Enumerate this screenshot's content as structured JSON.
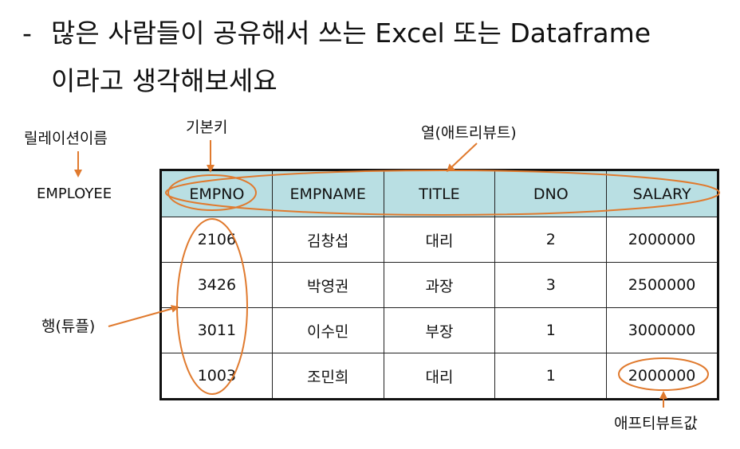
{
  "heading": {
    "bullet": "-",
    "line1": "많은 사람들이 공유해서 쓰는 Excel 또는 Dataframe",
    "line2": "이라고 생각해보세요"
  },
  "labels": {
    "relation_name": "릴레이션이름",
    "relation_value": "EMPLOYEE",
    "primary_key": "기본키",
    "attribute": "열(애트리뷰트)",
    "tuple": "행(튜플)",
    "attribute_value": "애프티뷰트값"
  },
  "table": {
    "headers": [
      "EMPNO",
      "EMPNAME",
      "TITLE",
      "DNO",
      "SALARY"
    ],
    "rows": [
      [
        "2106",
        "김창섭",
        "대리",
        "2",
        "2000000"
      ],
      [
        "3426",
        "박영권",
        "과장",
        "3",
        "2500000"
      ],
      [
        "3011",
        "이수민",
        "부장",
        "1",
        "3000000"
      ],
      [
        "1003",
        "조민희",
        "대리",
        "1",
        "2000000"
      ]
    ]
  },
  "colors": {
    "header_bg": "#b9dfe3",
    "annotation": "#e07a2e"
  }
}
